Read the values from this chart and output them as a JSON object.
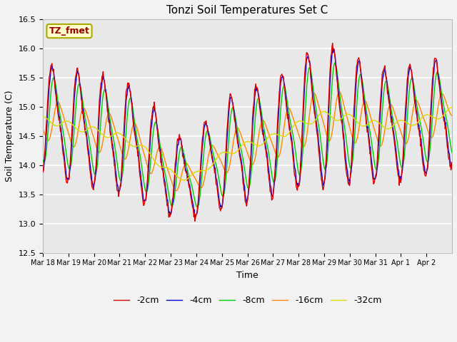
{
  "title": "Tonzi Soil Temperatures Set C",
  "xlabel": "Time",
  "ylabel": "Soil Temperature (C)",
  "ylim": [
    12.5,
    16.5
  ],
  "annotation": "TZ_fmet",
  "legend_labels": [
    "-2cm",
    "-4cm",
    "-8cm",
    "-16cm",
    "-32cm"
  ],
  "line_colors": [
    "#dd0000",
    "#0000dd",
    "#00cc00",
    "#ff8800",
    "#dddd00"
  ],
  "background_color": "#e8e8e8",
  "fig_color": "#f2f2f2",
  "num_days": 16,
  "x_tick_labels": [
    "Mar 18",
    "Mar 19",
    "Mar 20",
    "Mar 21",
    "Mar 22",
    "Mar 23",
    "Mar 24",
    "Mar 25",
    "Mar 26",
    "Mar 27",
    "Mar 28",
    "Mar 29",
    "Mar 30",
    "Mar 31",
    "Apr 1",
    "Apr 2"
  ],
  "yticks": [
    12.5,
    13.0,
    13.5,
    14.0,
    14.5,
    15.0,
    15.5,
    16.0,
    16.5
  ]
}
